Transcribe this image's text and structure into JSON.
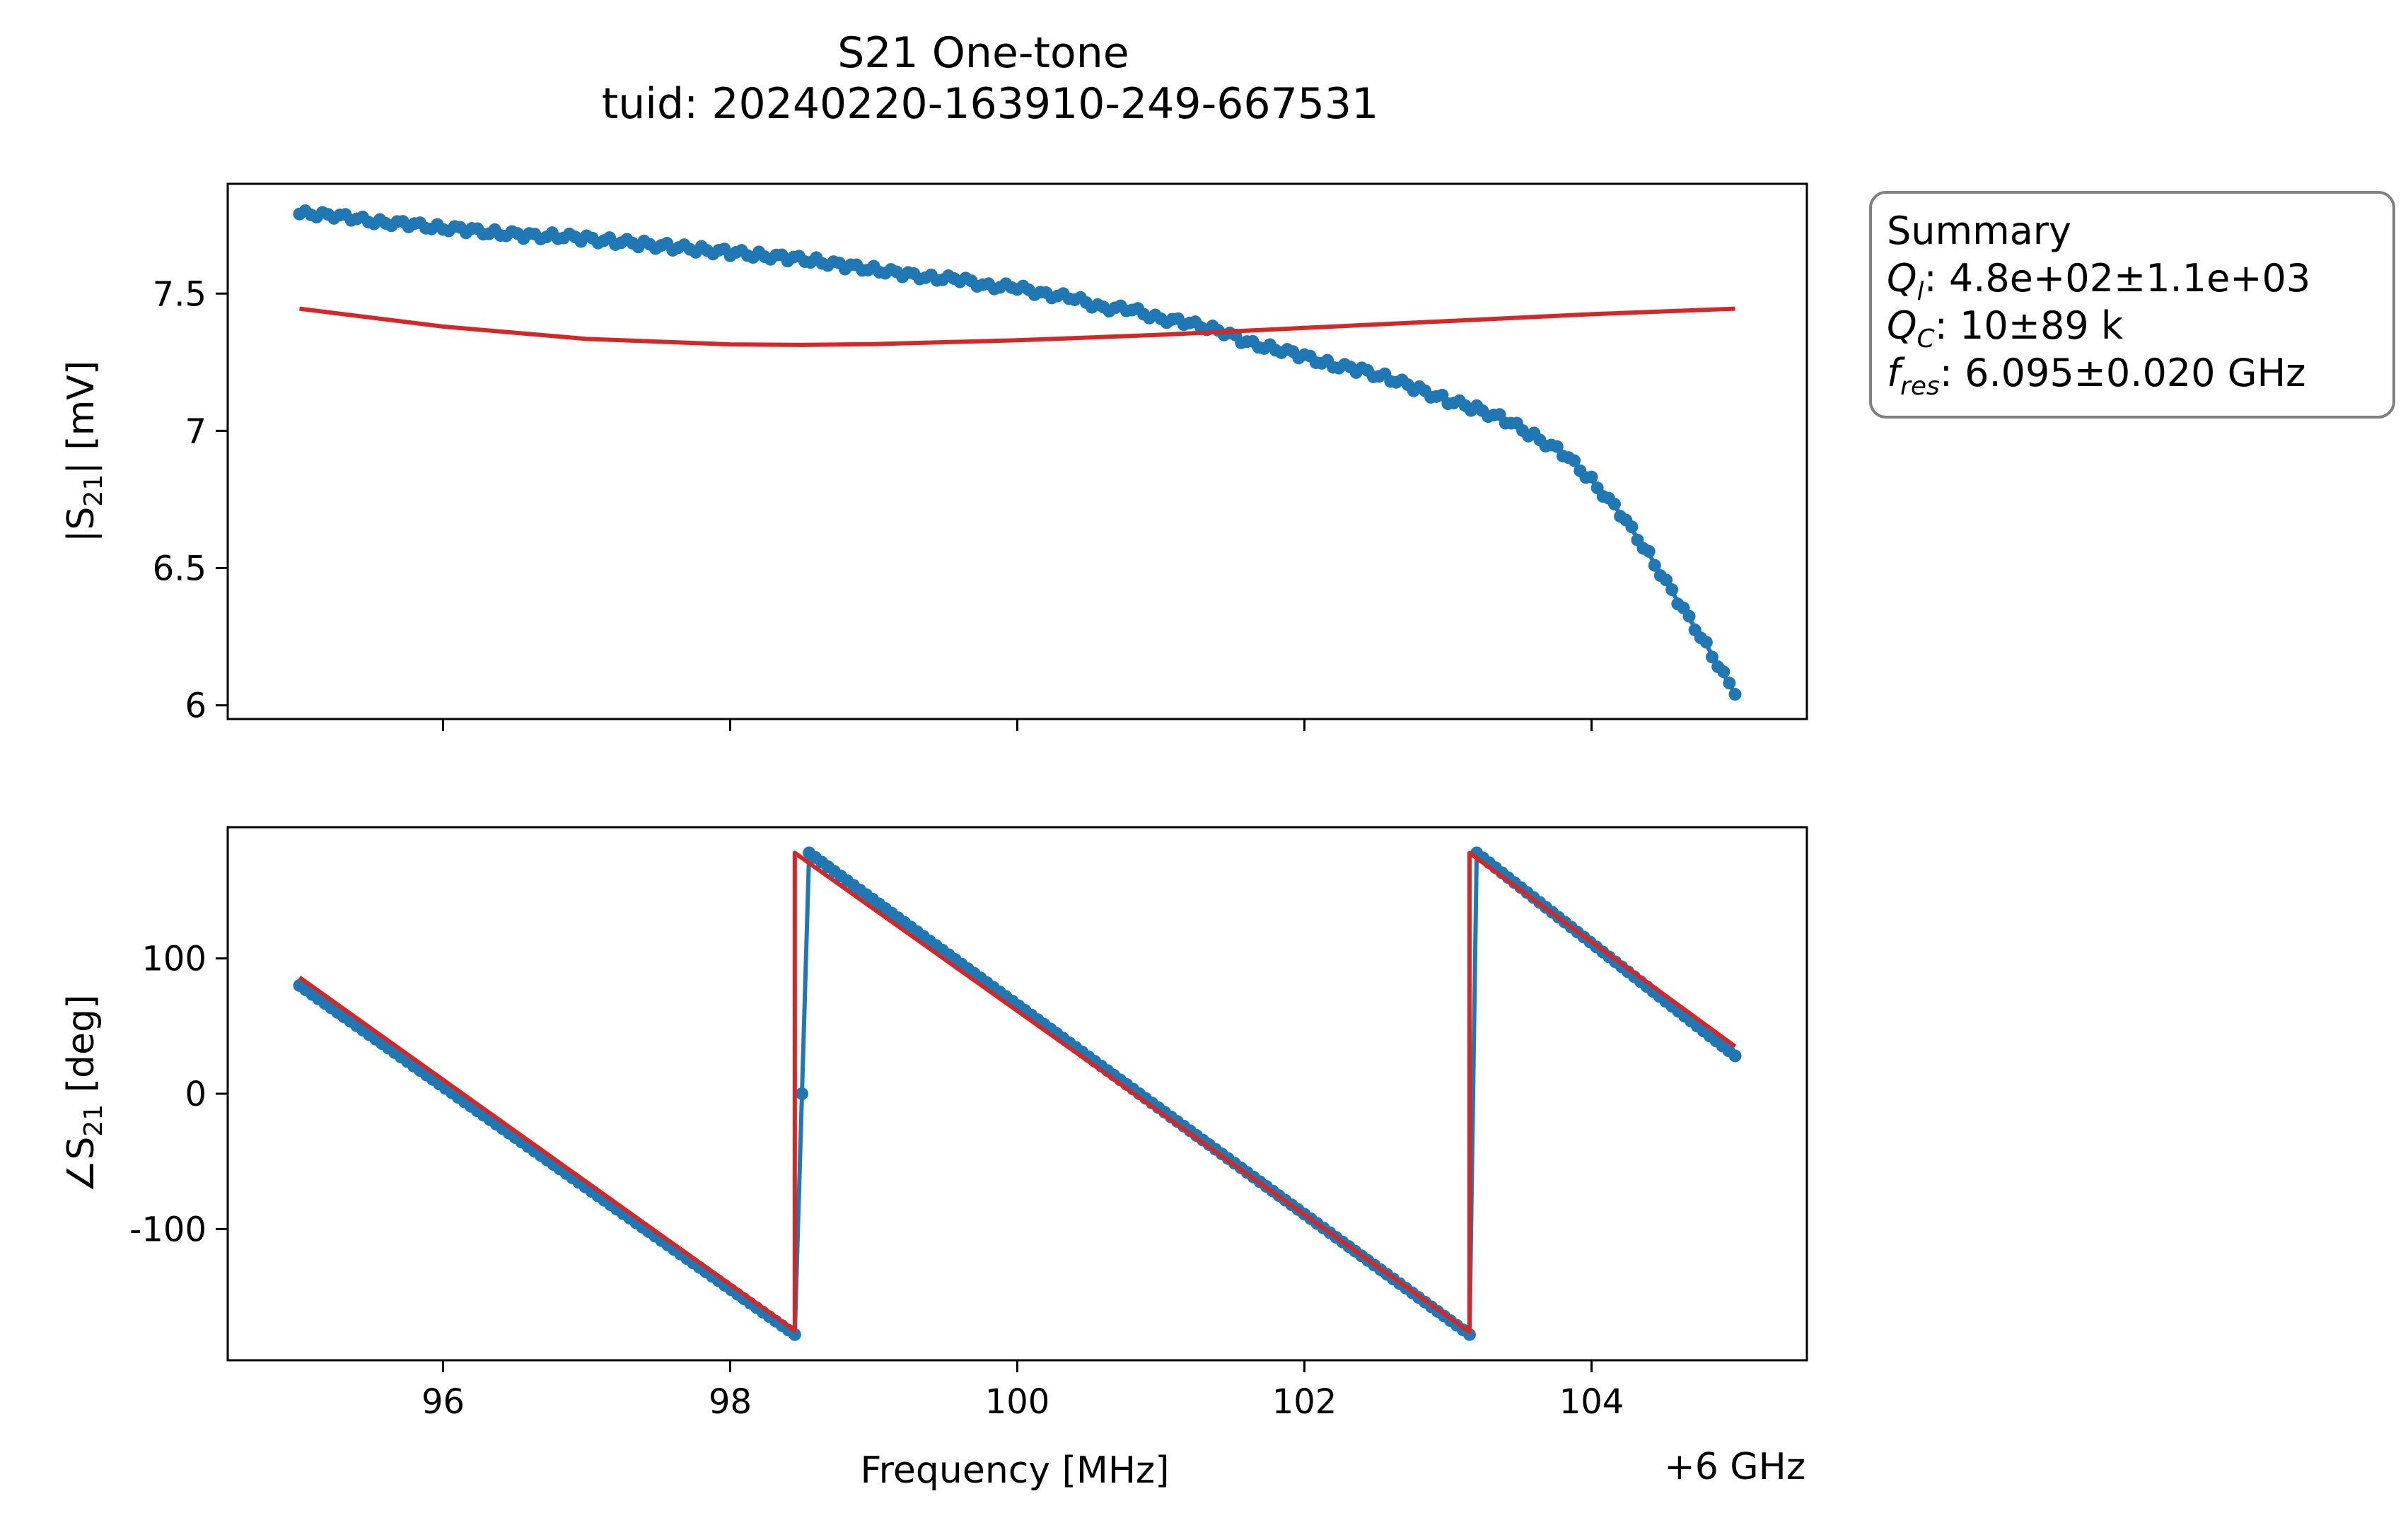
{
  "chart_data": {
    "title_lines": [
      "S21 One-tone",
      "tuid: 20240220-163910-249-667531"
    ],
    "summary": {
      "heading": "Summary",
      "lines": [
        {
          "sym": "Q",
          "sub": "l",
          "text": ": 4.8e+02±1.1e+03"
        },
        {
          "sym": "Q",
          "sub": "C",
          "text": ": 10±89 k"
        },
        {
          "sym": "f",
          "sub": "res",
          "text": ": 6.095±0.020 GHz"
        }
      ]
    },
    "x_offset_label": "+6 GHz",
    "xlabel": "Frequency [MHz]",
    "xlim": [
      94.5,
      105.5
    ],
    "xticks": [
      96,
      98,
      100,
      102,
      104
    ],
    "xtick_labels": [
      "96",
      "98",
      "100",
      "102",
      "104"
    ],
    "colors": {
      "data": "#1f77b4",
      "fit": "#d62728"
    },
    "subplots": [
      {
        "type": "line",
        "ylabel_parts": [
          "|S",
          "21",
          "| [mV]"
        ],
        "ylim": [
          5.95,
          7.9
        ],
        "yticks": [
          6,
          6.5,
          7,
          7.5
        ],
        "ytick_labels": [
          "6",
          "6.5",
          "7",
          "7.5"
        ],
        "data_series": {
          "x": [
            95.0,
            95.2,
            95.4,
            95.6,
            95.8,
            96.0,
            96.2,
            96.4,
            96.6,
            96.8,
            97.0,
            97.2,
            97.4,
            97.6,
            97.8,
            98.0,
            98.2,
            98.4,
            98.6,
            98.8,
            99.0,
            99.2,
            99.4,
            99.6,
            99.8,
            100.0,
            100.2,
            100.4,
            100.6,
            100.8,
            101.0,
            101.2,
            101.4,
            101.6,
            101.8,
            102.0,
            102.2,
            102.4,
            102.6,
            102.8,
            103.0,
            103.2,
            103.4,
            103.6,
            103.8,
            104.0,
            104.2,
            104.4,
            104.6,
            104.8,
            105.0
          ],
          "y": [
            7.79,
            7.79,
            7.77,
            7.76,
            7.75,
            7.74,
            7.73,
            7.72,
            7.71,
            7.71,
            7.7,
            7.69,
            7.68,
            7.67,
            7.66,
            7.65,
            7.64,
            7.63,
            7.62,
            7.6,
            7.59,
            7.57,
            7.56,
            7.55,
            7.53,
            7.52,
            7.5,
            7.48,
            7.45,
            7.44,
            7.41,
            7.39,
            7.37,
            7.32,
            7.3,
            7.27,
            7.24,
            7.22,
            7.19,
            7.15,
            7.11,
            7.08,
            7.04,
            6.98,
            6.92,
            6.82,
            6.7,
            6.55,
            6.38,
            6.22,
            6.04
          ]
        },
        "fit_series": {
          "x": [
            95.0,
            96.0,
            97.0,
            98.0,
            98.5,
            99.0,
            100.0,
            101.0,
            102.0,
            103.0,
            104.0,
            105.0
          ],
          "y": [
            7.445,
            7.38,
            7.335,
            7.315,
            7.313,
            7.316,
            7.33,
            7.35,
            7.375,
            7.4,
            7.425,
            7.445
          ]
        }
      },
      {
        "type": "line",
        "ylabel_parts": [
          "∠S",
          "21",
          " [deg]"
        ],
        "ylim": [
          -197,
          197
        ],
        "yticks": [
          -100,
          0,
          100
        ],
        "ytick_labels": [
          "-100",
          "0",
          "100"
        ],
        "data_series": {
          "x": [
            95.0,
            98.45,
            98.45,
            98.55,
            103.15,
            103.15,
            103.2,
            105.0
          ],
          "y": [
            80,
            -178,
            -178,
            178,
            -178,
            -178,
            178,
            28
          ]
        },
        "fit_series": {
          "x": [
            95.0,
            98.45,
            98.45,
            103.15,
            103.15,
            105.0
          ],
          "y": [
            86,
            -175,
            178,
            -176,
            178,
            35
          ]
        }
      }
    ]
  }
}
